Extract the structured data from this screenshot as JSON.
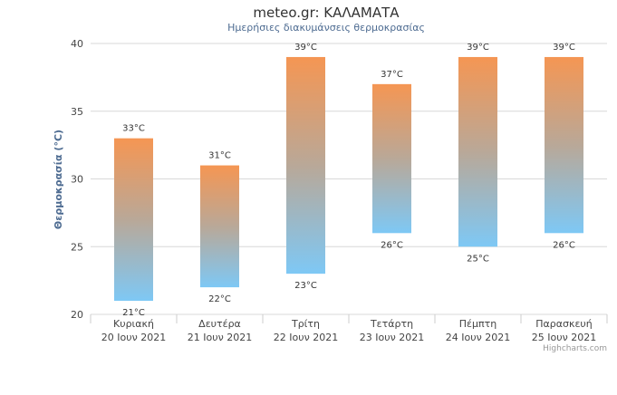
{
  "chart_data": {
    "type": "bar",
    "title": "meteo.gr: ΚΑΛΑΜΑΤΑ",
    "subtitle": "Ημερήσιες διακυμάνσεις θερμοκρασίας",
    "ylabel": "Θερμοκρασία (°C)",
    "ylim": [
      20,
      40
    ],
    "yticks": [
      20,
      25,
      30,
      35,
      40
    ],
    "grid": true,
    "unit": "°C",
    "categories": [
      [
        "Κυριακή",
        "20 Ιουν 2021"
      ],
      [
        "Δευτέρα",
        "21 Ιουν 2021"
      ],
      [
        "Τρίτη",
        "22 Ιουν 2021"
      ],
      [
        "Τετάρτη",
        "23 Ιουν 2021"
      ],
      [
        "Πέμπτη",
        "24 Ιουν 2021"
      ],
      [
        "Παρασκευή",
        "25 Ιουν 2021"
      ]
    ],
    "ranges": [
      {
        "low": 21,
        "high": 33
      },
      {
        "low": 22,
        "high": 31
      },
      {
        "low": 23,
        "high": 39
      },
      {
        "low": 26,
        "high": 37
      },
      {
        "low": 25,
        "high": 39
      },
      {
        "low": 26,
        "high": 39
      }
    ],
    "colors": {
      "high": "#f59653",
      "mid": "#b9a898",
      "low": "#7ec8f5",
      "grid": "#d8d8d8"
    },
    "credits": "Highcharts.com"
  }
}
